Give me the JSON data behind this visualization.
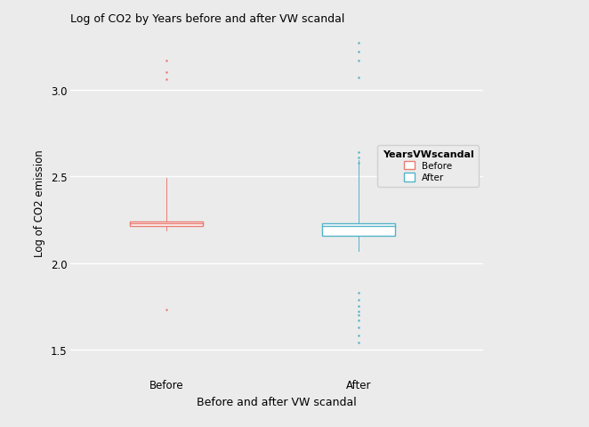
{
  "title": "Log of CO2 by Years before and after VW scandal",
  "xlabel": "Before and after VW scandal",
  "ylabel": "Log of CO2 emission",
  "background_color": "#ebebeb",
  "plot_bg_color": "#ebebeb",
  "legend_title": "YearsVWscandal",
  "legend_labels": [
    "Before",
    "After"
  ],
  "before_color": "#e87d72",
  "after_color": "#53b4c8",
  "before": {
    "q1": 2.215,
    "median": 2.228,
    "q3": 2.238,
    "whisker_low": 2.19,
    "whisker_high": 2.49,
    "outliers_low": [
      1.73
    ],
    "outliers_high": [
      3.06,
      3.1,
      3.17
    ]
  },
  "after": {
    "q1": 2.155,
    "median": 2.215,
    "q3": 2.228,
    "whisker_low": 2.07,
    "whisker_high": 2.595,
    "outliers_low": [
      1.83,
      1.79,
      1.75,
      1.72,
      1.7,
      1.67,
      1.63,
      1.58,
      1.54
    ],
    "outliers_high": [
      3.07,
      3.17,
      3.22,
      3.27,
      2.64,
      2.61,
      2.58
    ]
  },
  "ylim": [
    1.35,
    3.35
  ],
  "yticks": [
    1.5,
    2.0,
    2.5,
    3.0
  ],
  "xtick_labels": [
    "Before",
    "After"
  ],
  "box_width": 0.38,
  "figsize": [
    6.62,
    4.81
  ],
  "dpi": 100,
  "grid_color": "#ffffff",
  "grid_lw": 1.0
}
